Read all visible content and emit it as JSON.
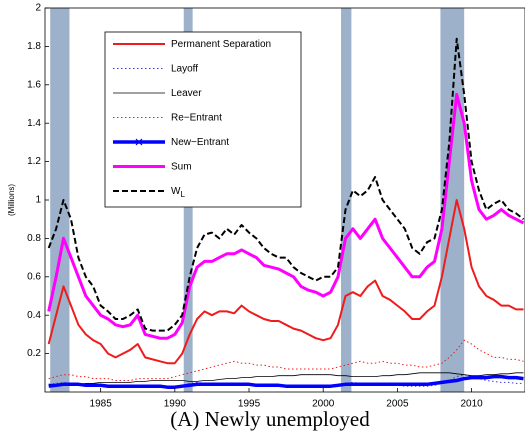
{
  "chart_data": {
    "type": "line",
    "caption": "(A) Newly unemployed",
    "y_label": "(Millions)",
    "x": [
      1981.5,
      1982,
      1982.5,
      1983,
      1983.5,
      1984,
      1984.5,
      1985,
      1985.5,
      1986,
      1986.5,
      1987,
      1987.5,
      1988,
      1988.5,
      1989,
      1989.5,
      1990,
      1990.5,
      1991,
      1991.5,
      1992,
      1992.5,
      1993,
      1993.5,
      1994,
      1994.5,
      1995,
      1995.5,
      1996,
      1996.5,
      1997,
      1997.5,
      1998,
      1998.5,
      1999,
      1999.5,
      2000,
      2000.5,
      2001,
      2001.5,
      2002,
      2002.5,
      2003,
      2003.5,
      2004,
      2004.5,
      2005,
      2005.5,
      2006,
      2006.5,
      2007,
      2007.5,
      2008,
      2008.5,
      2009,
      2009.5,
      2010,
      2010.5,
      2011,
      2011.5,
      2012,
      2012.5,
      2013,
      2013.5
    ],
    "xlim": [
      1981.25,
      2013.6
    ],
    "xticks": [
      1985,
      1990,
      1995,
      2000,
      2005,
      2010
    ],
    "ylim": [
      0,
      2
    ],
    "yticks": [
      0.2,
      0.4,
      0.6,
      0.8,
      1,
      1.2,
      1.4,
      1.6,
      1.8,
      2
    ],
    "recessions": [
      [
        1981.6,
        1982.9
      ],
      [
        1990.6,
        1991.2
      ],
      [
        2001.2,
        2001.9
      ],
      [
        2007.9,
        2009.5
      ]
    ],
    "recession_color": "#9db1cb",
    "series": [
      {
        "name": "Permanent Separation",
        "color": "#ee1c1c",
        "style": "solid",
        "width": 2,
        "values": [
          0.25,
          0.4,
          0.55,
          0.45,
          0.35,
          0.3,
          0.27,
          0.25,
          0.2,
          0.18,
          0.2,
          0.22,
          0.25,
          0.18,
          0.17,
          0.16,
          0.15,
          0.15,
          0.2,
          0.3,
          0.38,
          0.42,
          0.4,
          0.42,
          0.42,
          0.41,
          0.45,
          0.42,
          0.4,
          0.38,
          0.37,
          0.37,
          0.35,
          0.33,
          0.32,
          0.3,
          0.28,
          0.27,
          0.28,
          0.35,
          0.5,
          0.52,
          0.5,
          0.55,
          0.58,
          0.5,
          0.48,
          0.45,
          0.42,
          0.38,
          0.38,
          0.42,
          0.45,
          0.6,
          0.8,
          1.0,
          0.85,
          0.65,
          0.55,
          0.5,
          0.48,
          0.45,
          0.45,
          0.43,
          0.43
        ]
      },
      {
        "name": "Layoff",
        "color": "#3a3ad8",
        "style": "dotted",
        "width": 1,
        "values": [
          0.04,
          0.045,
          0.05,
          0.045,
          0.04,
          0.035,
          0.03,
          0.03,
          0.03,
          0.03,
          0.03,
          0.03,
          0.03,
          0.03,
          0.025,
          0.025,
          0.025,
          0.03,
          0.035,
          0.045,
          0.05,
          0.045,
          0.04,
          0.04,
          0.04,
          0.04,
          0.035,
          0.035,
          0.03,
          0.03,
          0.03,
          0.03,
          0.03,
          0.025,
          0.025,
          0.025,
          0.025,
          0.025,
          0.03,
          0.035,
          0.045,
          0.05,
          0.045,
          0.04,
          0.04,
          0.04,
          0.035,
          0.035,
          0.03,
          0.03,
          0.03,
          0.03,
          0.035,
          0.045,
          0.06,
          0.08,
          0.09,
          0.08,
          0.07,
          0.06,
          0.055,
          0.05,
          0.05,
          0.045,
          0.045
        ]
      },
      {
        "name": "Leaver",
        "color": "#000000",
        "style": "solid",
        "width": 0.8,
        "values": [
          0.04,
          0.04,
          0.04,
          0.04,
          0.04,
          0.045,
          0.045,
          0.05,
          0.05,
          0.05,
          0.05,
          0.05,
          0.055,
          0.055,
          0.06,
          0.06,
          0.06,
          0.06,
          0.06,
          0.055,
          0.055,
          0.06,
          0.06,
          0.065,
          0.07,
          0.07,
          0.075,
          0.075,
          0.08,
          0.08,
          0.08,
          0.085,
          0.085,
          0.085,
          0.09,
          0.09,
          0.09,
          0.09,
          0.09,
          0.085,
          0.085,
          0.08,
          0.08,
          0.08,
          0.08,
          0.085,
          0.085,
          0.09,
          0.09,
          0.095,
          0.1,
          0.1,
          0.1,
          0.1,
          0.1,
          0.095,
          0.09,
          0.085,
          0.085,
          0.09,
          0.09,
          0.095,
          0.095,
          0.1,
          0.1
        ]
      },
      {
        "name": "Re−Entrant",
        "color": "#ee1c1c",
        "style": "dotted",
        "width": 1,
        "values": [
          0.07,
          0.08,
          0.09,
          0.09,
          0.08,
          0.08,
          0.07,
          0.07,
          0.07,
          0.06,
          0.06,
          0.06,
          0.07,
          0.07,
          0.07,
          0.07,
          0.07,
          0.08,
          0.09,
          0.1,
          0.11,
          0.12,
          0.13,
          0.14,
          0.15,
          0.16,
          0.15,
          0.15,
          0.14,
          0.14,
          0.13,
          0.13,
          0.12,
          0.12,
          0.12,
          0.12,
          0.12,
          0.12,
          0.12,
          0.13,
          0.14,
          0.15,
          0.16,
          0.15,
          0.15,
          0.16,
          0.15,
          0.15,
          0.14,
          0.14,
          0.13,
          0.13,
          0.14,
          0.15,
          0.18,
          0.22,
          0.27,
          0.25,
          0.22,
          0.2,
          0.18,
          0.18,
          0.17,
          0.17,
          0.16
        ]
      },
      {
        "name": "New−Entrant",
        "color": "#0000ff",
        "style": "marker",
        "width": 3.5,
        "values": [
          0.03,
          0.035,
          0.04,
          0.04,
          0.04,
          0.035,
          0.035,
          0.035,
          0.03,
          0.03,
          0.03,
          0.03,
          0.03,
          0.03,
          0.03,
          0.03,
          0.025,
          0.025,
          0.03,
          0.035,
          0.04,
          0.04,
          0.04,
          0.04,
          0.04,
          0.04,
          0.04,
          0.04,
          0.035,
          0.035,
          0.035,
          0.035,
          0.03,
          0.03,
          0.03,
          0.03,
          0.03,
          0.03,
          0.03,
          0.035,
          0.04,
          0.04,
          0.04,
          0.04,
          0.04,
          0.04,
          0.04,
          0.04,
          0.04,
          0.04,
          0.04,
          0.04,
          0.045,
          0.05,
          0.055,
          0.06,
          0.07,
          0.075,
          0.075,
          0.075,
          0.08,
          0.08,
          0.075,
          0.075,
          0.07
        ]
      },
      {
        "name": "Sum",
        "color": "#ff00ff",
        "style": "solid",
        "width": 3,
        "values": [
          0.42,
          0.6,
          0.8,
          0.7,
          0.6,
          0.5,
          0.45,
          0.4,
          0.38,
          0.35,
          0.34,
          0.35,
          0.4,
          0.3,
          0.29,
          0.28,
          0.28,
          0.3,
          0.36,
          0.55,
          0.65,
          0.68,
          0.68,
          0.7,
          0.72,
          0.72,
          0.74,
          0.72,
          0.7,
          0.66,
          0.65,
          0.64,
          0.62,
          0.6,
          0.55,
          0.53,
          0.52,
          0.5,
          0.52,
          0.6,
          0.8,
          0.85,
          0.8,
          0.85,
          0.9,
          0.8,
          0.75,
          0.7,
          0.65,
          0.6,
          0.6,
          0.65,
          0.68,
          0.85,
          1.2,
          1.55,
          1.4,
          1.1,
          0.95,
          0.9,
          0.92,
          0.95,
          0.92,
          0.9,
          0.88
        ]
      },
      {
        "name": "W",
        "subscript": "L",
        "color": "#000000",
        "style": "dashed",
        "width": 2,
        "values": [
          0.75,
          0.85,
          1.0,
          0.9,
          0.7,
          0.6,
          0.55,
          0.45,
          0.42,
          0.38,
          0.38,
          0.4,
          0.43,
          0.33,
          0.32,
          0.32,
          0.32,
          0.35,
          0.4,
          0.6,
          0.75,
          0.82,
          0.83,
          0.8,
          0.85,
          0.82,
          0.87,
          0.83,
          0.8,
          0.75,
          0.72,
          0.7,
          0.7,
          0.65,
          0.62,
          0.6,
          0.58,
          0.6,
          0.6,
          0.65,
          0.95,
          1.05,
          1.02,
          1.05,
          1.12,
          1.0,
          0.95,
          0.9,
          0.85,
          0.75,
          0.72,
          0.78,
          0.8,
          0.95,
          1.3,
          1.84,
          1.55,
          1.2,
          1.05,
          0.95,
          0.98,
          1.0,
          0.95,
          0.93,
          0.9
        ]
      }
    ]
  }
}
